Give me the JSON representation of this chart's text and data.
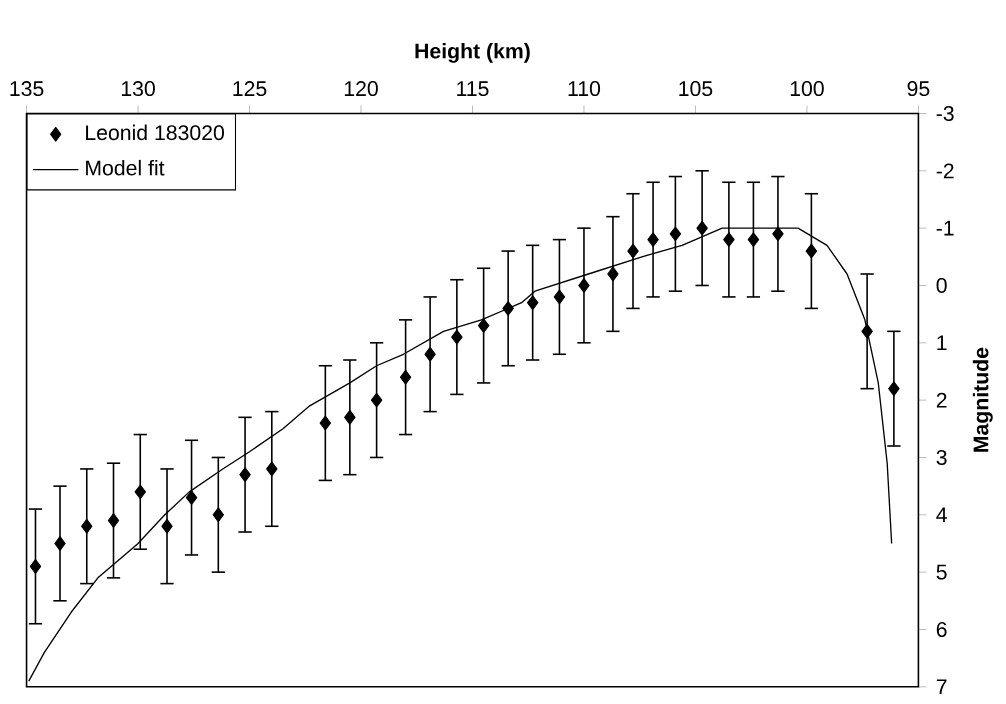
{
  "chart_data": {
    "type": "scatter",
    "xlabel": "Height (km)",
    "ylabel": "Magnitude",
    "xlim": [
      135,
      95
    ],
    "xticks": [
      135,
      130,
      125,
      120,
      115,
      110,
      105,
      100,
      95
    ],
    "ylim": [
      7,
      -3
    ],
    "yticks": [
      -3,
      -2,
      -1,
      0,
      1,
      2,
      3,
      4,
      5,
      6,
      7
    ],
    "legend": "top left",
    "grid": false,
    "series": [
      {
        "name": "Leonid 183020",
        "marker": "diamond",
        "color": "#000000",
        "x": [
          134.6,
          133.5,
          132.3,
          131.1,
          129.9,
          128.7,
          127.6,
          126.4,
          125.2,
          124.0,
          121.6,
          120.5,
          119.3,
          118.0,
          116.9,
          115.7,
          114.5,
          113.4,
          112.3,
          111.1,
          110.0,
          108.7,
          107.8,
          106.9,
          105.9,
          104.7,
          103.5,
          102.4,
          101.3,
          99.8,
          97.3,
          96.1
        ],
        "values": [
          4.9,
          4.5,
          4.2,
          4.1,
          3.6,
          4.2,
          3.7,
          4.0,
          3.3,
          3.2,
          2.4,
          2.3,
          2.0,
          1.6,
          1.2,
          0.9,
          0.7,
          0.4,
          0.3,
          0.2,
          0.0,
          -0.2,
          -0.6,
          -0.8,
          -0.9,
          -1.0,
          -0.8,
          -0.8,
          -0.9,
          -0.6,
          0.8,
          1.8
        ],
        "errors": [
          1,
          1,
          1,
          1,
          1,
          1,
          1,
          1,
          1,
          1,
          1,
          1,
          1,
          1,
          1,
          1,
          1,
          1,
          1,
          1,
          1,
          1,
          1,
          1,
          1,
          1,
          1,
          1,
          1,
          1,
          1,
          1
        ]
      },
      {
        "name": "Model fit",
        "type": "line",
        "marker": "none",
        "line_style": "solid",
        "color": "#000000",
        "x": [
          134.9,
          134.2,
          133.0,
          131.8,
          130.6,
          130.0,
          128.8,
          127.7,
          126.2,
          125.0,
          123.5,
          122.3,
          120.5,
          119.3,
          118.1,
          116.3,
          114.6,
          112.8,
          112.2,
          109.8,
          107.4,
          105.6,
          103.8,
          102.1,
          100.4,
          99.1,
          98.2,
          97.4,
          96.8,
          96.4,
          96.2
        ],
        "values": [
          6.9,
          6.4,
          5.7,
          5.1,
          4.7,
          4.5,
          4.0,
          3.6,
          3.2,
          2.9,
          2.5,
          2.1,
          1.7,
          1.4,
          1.2,
          0.8,
          0.6,
          0.3,
          0.1,
          -0.2,
          -0.5,
          -0.7,
          -1.0,
          -1.0,
          -1.0,
          -0.7,
          -0.2,
          0.6,
          1.7,
          3.1,
          4.5
        ]
      }
    ]
  }
}
